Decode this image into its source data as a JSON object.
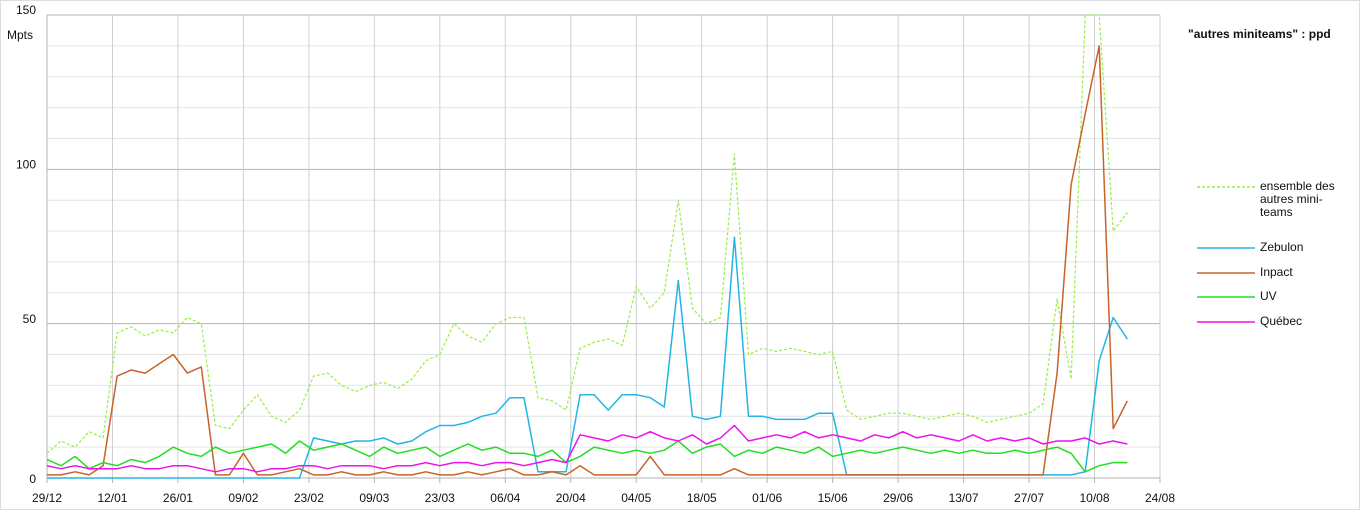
{
  "chart_data": {
    "type": "line",
    "title": "\"autres miniteams\" : ppd",
    "y_label": "Mpts",
    "x": [
      0,
      3,
      6,
      9,
      12,
      15,
      18,
      21,
      24,
      27,
      30,
      33,
      36,
      39,
      42,
      45,
      48,
      51,
      54,
      57,
      60,
      63,
      66,
      69,
      72,
      75,
      78,
      81,
      84,
      87,
      90,
      93,
      96,
      99,
      102,
      105,
      108,
      111,
      114,
      117,
      120,
      123,
      126,
      129,
      132,
      135,
      138,
      141,
      144,
      147,
      150,
      153,
      156,
      159,
      162,
      165,
      168,
      171,
      174,
      177,
      180,
      183,
      186,
      189,
      192,
      195,
      198,
      201,
      204,
      207,
      210,
      213,
      216,
      219,
      222,
      225,
      228,
      231
    ],
    "xlim": [
      0,
      238
    ],
    "xticks": [
      {
        "value": 0,
        "label": "29/12"
      },
      {
        "value": 14,
        "label": "12/01"
      },
      {
        "value": 28,
        "label": "26/01"
      },
      {
        "value": 42,
        "label": "09/02"
      },
      {
        "value": 56,
        "label": "23/02"
      },
      {
        "value": 70,
        "label": "09/03"
      },
      {
        "value": 84,
        "label": "23/03"
      },
      {
        "value": 98,
        "label": "06/04"
      },
      {
        "value": 112,
        "label": "20/04"
      },
      {
        "value": 126,
        "label": "04/05"
      },
      {
        "value": 140,
        "label": "18/05"
      },
      {
        "value": 154,
        "label": "01/06"
      },
      {
        "value": 168,
        "label": "15/06"
      },
      {
        "value": 182,
        "label": "29/06"
      },
      {
        "value": 196,
        "label": "13/07"
      },
      {
        "value": 210,
        "label": "27/07"
      },
      {
        "value": 224,
        "label": "10/08"
      },
      {
        "value": 238,
        "label": "24/08"
      }
    ],
    "ylim": [
      0,
      150
    ],
    "yticks": [
      0,
      50,
      100,
      150
    ],
    "y_minor_ticks": [
      10,
      20,
      30,
      40,
      60,
      70,
      80,
      90,
      110,
      120,
      130,
      140
    ],
    "grid": true,
    "legend": "right",
    "series": [
      {
        "name": "ensemble des autres mini-teams",
        "color": "#99ee44",
        "style": "dashed",
        "values": [
          8,
          12,
          10,
          15,
          13,
          47,
          49,
          46,
          48,
          47,
          52,
          50,
          17,
          16,
          22,
          27,
          20,
          18,
          22,
          33,
          34,
          30,
          28,
          30,
          31,
          29,
          32,
          38,
          40,
          50,
          46,
          44,
          50,
          52,
          52,
          26,
          25,
          22,
          42,
          44,
          45,
          43,
          62,
          55,
          60,
          90,
          55,
          50,
          52,
          105,
          40,
          42,
          41,
          42,
          41,
          40,
          41,
          22,
          19,
          20,
          21,
          21,
          20,
          19,
          20,
          21,
          20,
          18,
          19,
          20,
          21,
          24,
          58,
          32,
          150,
          150,
          80,
          86
        ]
      },
      {
        "name": "Zebulon",
        "color": "#22b5e6",
        "style": "solid",
        "values": [
          0,
          0,
          0,
          0,
          0,
          0,
          0,
          0,
          0,
          0,
          0,
          0,
          0,
          0,
          0,
          0,
          0,
          0,
          0,
          13,
          12,
          11,
          12,
          12,
          13,
          11,
          12,
          15,
          17,
          17,
          18,
          20,
          21,
          26,
          26,
          2,
          2,
          2,
          27,
          27,
          22,
          27,
          27,
          26,
          23,
          64,
          20,
          19,
          20,
          78,
          20,
          20,
          19,
          19,
          19,
          21,
          21,
          1,
          1,
          1,
          1,
          1,
          1,
          1,
          1,
          1,
          1,
          1,
          1,
          1,
          1,
          1,
          1,
          1,
          2,
          38,
          52,
          45
        ]
      },
      {
        "name": "Inpact",
        "color": "#c8632a",
        "style": "solid",
        "values": [
          1,
          1,
          2,
          1,
          4,
          33,
          35,
          34,
          37,
          40,
          34,
          36,
          1,
          1,
          8,
          1,
          1,
          2,
          3,
          1,
          1,
          2,
          1,
          1,
          2,
          1,
          1,
          2,
          1,
          1,
          2,
          1,
          2,
          3,
          1,
          1,
          2,
          1,
          4,
          1,
          1,
          1,
          1,
          7,
          1,
          1,
          1,
          1,
          1,
          3,
          1,
          1,
          1,
          1,
          1,
          1,
          1,
          1,
          1,
          1,
          1,
          1,
          1,
          1,
          1,
          1,
          1,
          1,
          1,
          1,
          1,
          1,
          34,
          95,
          118,
          140,
          16,
          25
        ]
      },
      {
        "name": "UV",
        "color": "#22dd22",
        "style": "solid",
        "values": [
          6,
          4,
          7,
          3,
          5,
          4,
          6,
          5,
          7,
          10,
          8,
          7,
          10,
          8,
          9,
          10,
          11,
          8,
          12,
          9,
          10,
          11,
          9,
          7,
          10,
          8,
          9,
          10,
          7,
          9,
          11,
          9,
          10,
          8,
          8,
          7,
          9,
          5,
          7,
          10,
          9,
          8,
          9,
          8,
          9,
          12,
          8,
          10,
          11,
          7,
          9,
          8,
          10,
          9,
          8,
          10,
          7,
          8,
          9,
          8,
          9,
          10,
          9,
          8,
          9,
          8,
          9,
          8,
          8,
          9,
          8,
          9,
          10,
          8,
          2,
          4,
          5,
          5
        ]
      },
      {
        "name": "Québec",
        "color": "#ee11ee",
        "style": "solid",
        "values": [
          4,
          3,
          4,
          3,
          3,
          3,
          4,
          3,
          3,
          4,
          4,
          3,
          2,
          3,
          3,
          2,
          3,
          3,
          4,
          4,
          3,
          4,
          4,
          4,
          3,
          4,
          4,
          5,
          4,
          5,
          5,
          4,
          5,
          5,
          4,
          5,
          6,
          5,
          14,
          13,
          12,
          14,
          13,
          15,
          13,
          12,
          14,
          11,
          13,
          17,
          12,
          13,
          14,
          13,
          15,
          13,
          14,
          13,
          12,
          14,
          13,
          15,
          13,
          14,
          13,
          12,
          14,
          12,
          13,
          12,
          13,
          11,
          12,
          12,
          13,
          11,
          12,
          11
        ]
      }
    ]
  }
}
